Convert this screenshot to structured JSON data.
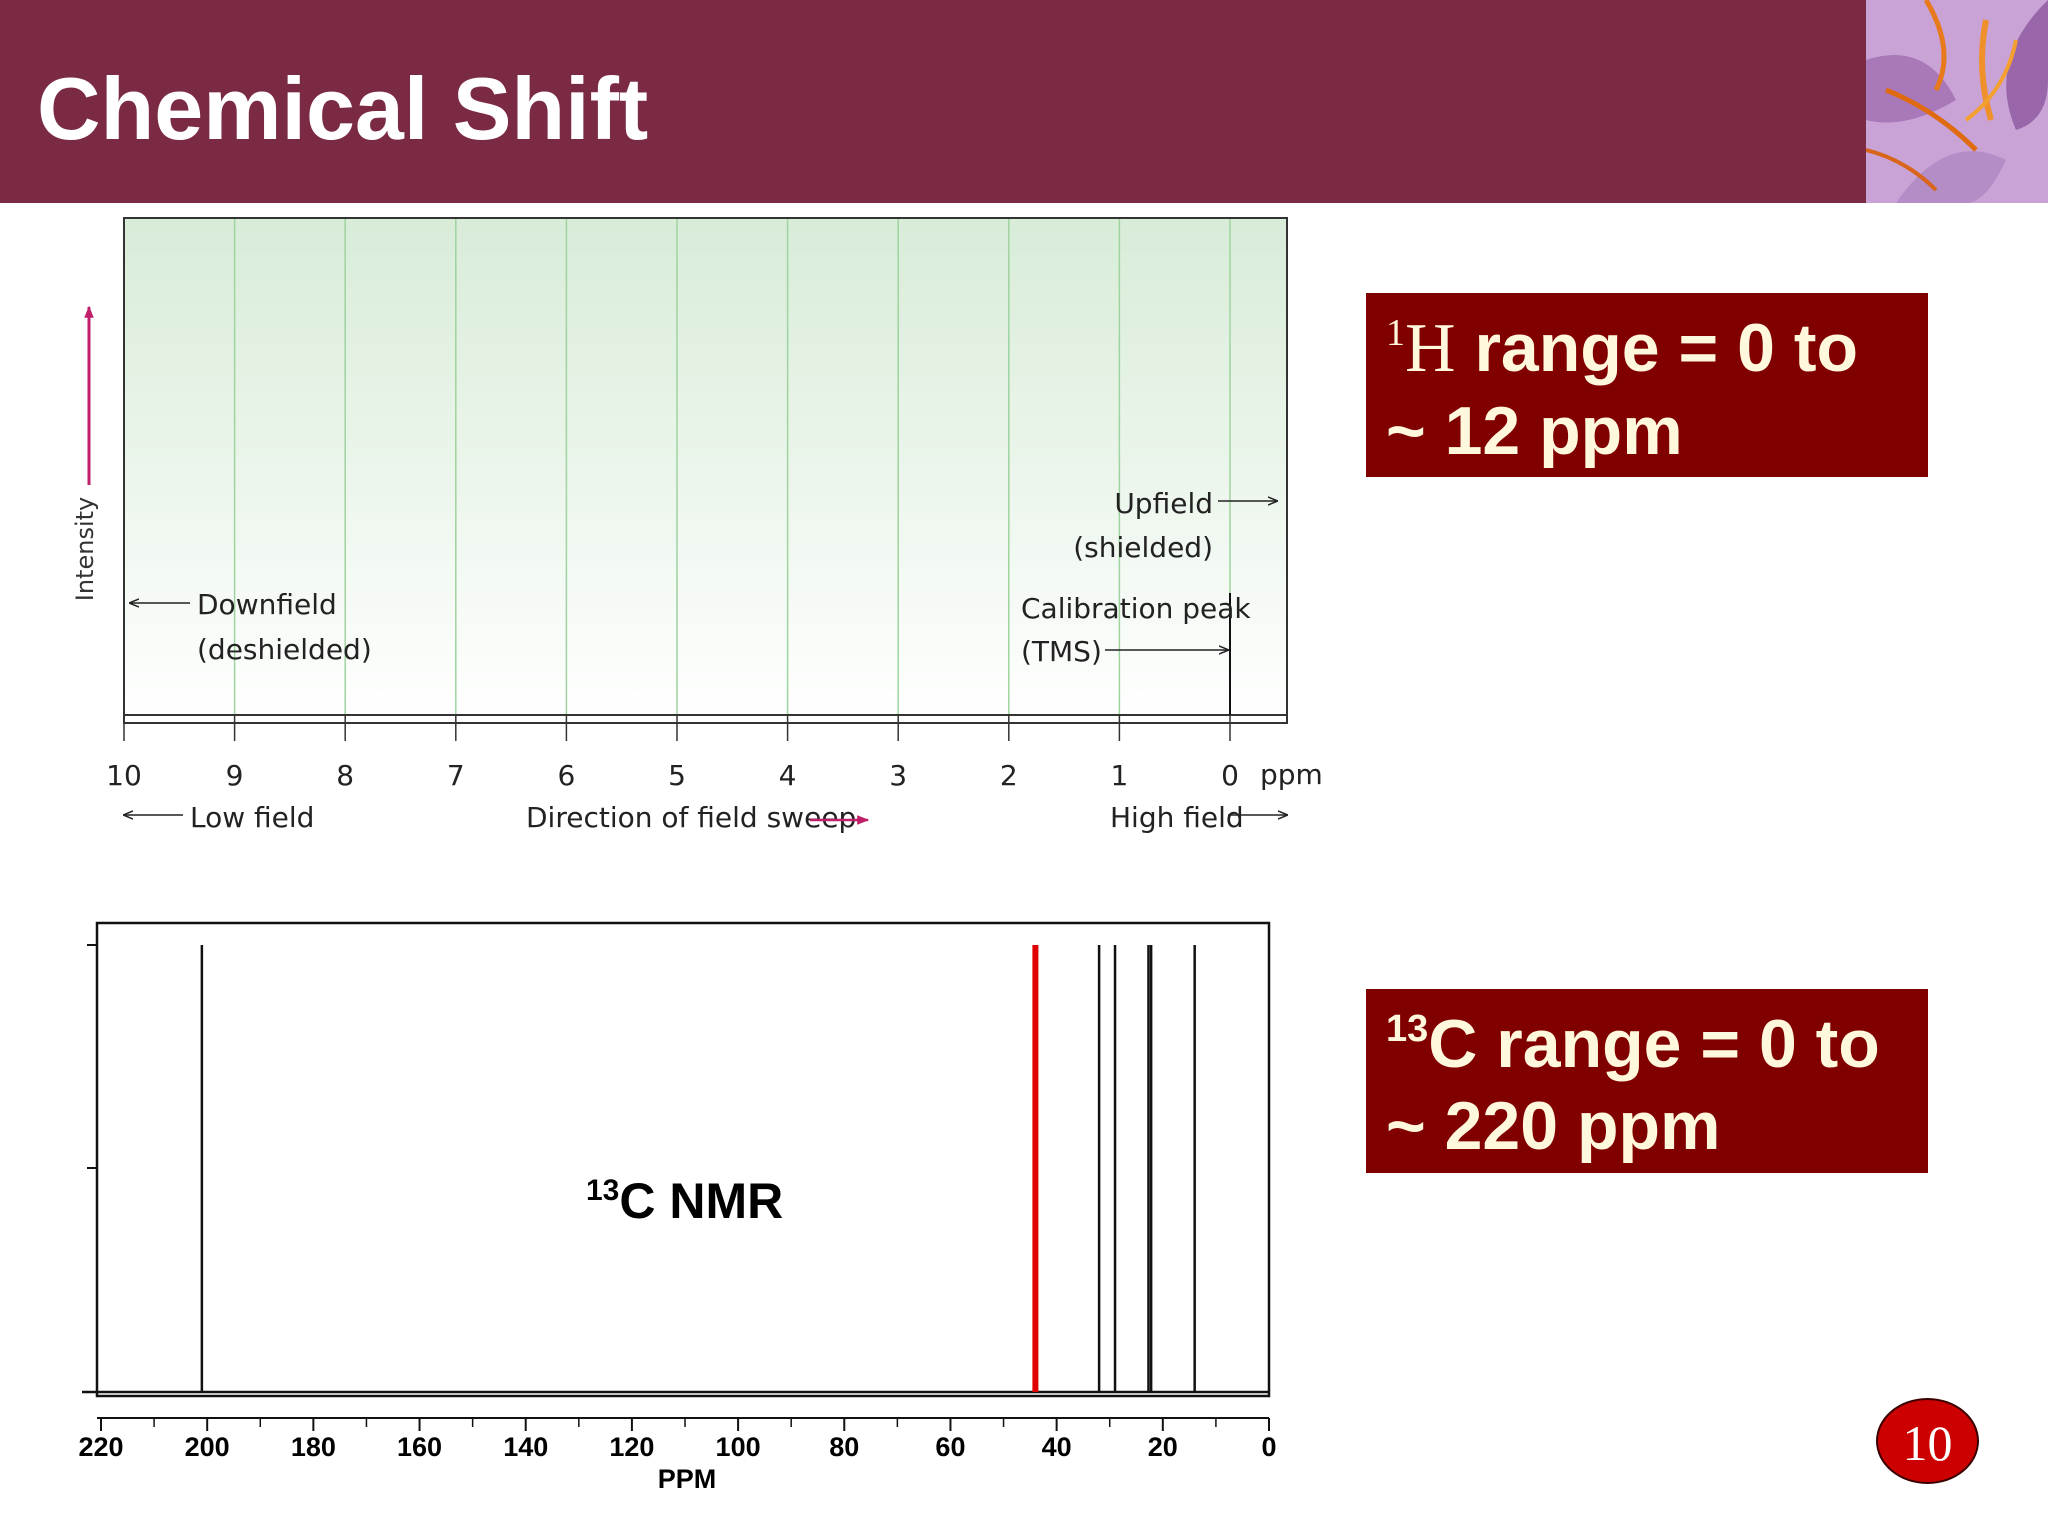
{
  "slide": {
    "title": "Chemical Shift",
    "page_number": "10"
  },
  "range_boxes": {
    "h": {
      "superscript": "1",
      "element": "H",
      "rest_line1": " range = 0 to",
      "line2": "~ 12 ppm"
    },
    "c": {
      "superscript": "13",
      "element": "C",
      "rest_line1": " range = 0 to",
      "line2": "~ 220 ppm"
    }
  },
  "colors": {
    "header": "#7b2a43",
    "range_box": "#800000",
    "range_text": "#fff8dc",
    "page_badge": "#cc0000",
    "highlight_peak": "#e00000",
    "h_arrow": "#c0206a",
    "h_plot_bg_top": "#d8ecd8",
    "h_grid": "#9fd39f"
  },
  "chart_data": [
    {
      "type": "line",
      "axis_unit_label": "ppm",
      "xlim": [
        10,
        0
      ],
      "x_ticks": [
        "10",
        "9",
        "8",
        "7",
        "6",
        "5",
        "4",
        "3",
        "2",
        "1",
        "0"
      ],
      "y_axis_label": "Intensity",
      "grid": true,
      "peaks": [
        {
          "x": 0,
          "label_line1": "Calibration peak",
          "label_line2": "(TMS)"
        }
      ],
      "annotations": {
        "downfield_line1": "Downfield",
        "downfield_line2": "(deshielded)",
        "upfield_line1": "Upfield",
        "upfield_line2": "(shielded)",
        "low_field": "Low field",
        "direction": "Direction of field sweep",
        "high_field": "High field"
      }
    },
    {
      "type": "line",
      "label_superscript": "13",
      "label_text": "C NMR",
      "xlabel": "PPM",
      "xlim": [
        220,
        0
      ],
      "x_ticks": [
        "220",
        "200",
        "180",
        "160",
        "140",
        "120",
        "100",
        "80",
        "60",
        "40",
        "20",
        "0"
      ],
      "peaks": [
        {
          "x": 201,
          "highlight": false
        },
        {
          "x": 44,
          "highlight": true
        },
        {
          "x": 32,
          "highlight": false
        },
        {
          "x": 29,
          "highlight": false
        },
        {
          "x": 22.7,
          "highlight": false
        },
        {
          "x": 22.2,
          "highlight": false
        },
        {
          "x": 14,
          "highlight": false
        }
      ]
    }
  ]
}
